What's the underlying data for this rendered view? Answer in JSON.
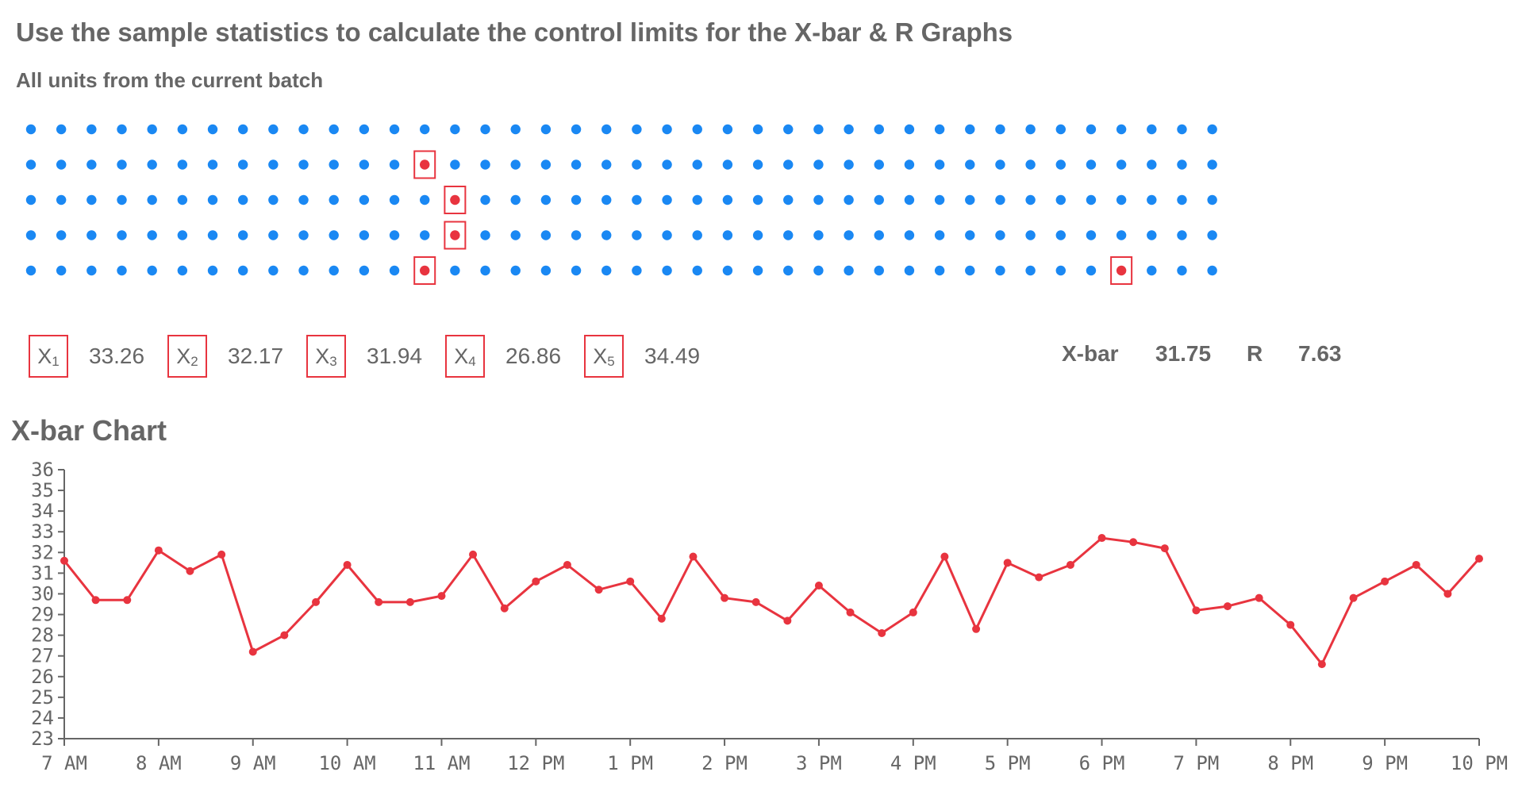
{
  "title": "Use the sample statistics to calculate the control limits for the X-bar & R Graphs",
  "subtitle": "All units from the current batch",
  "batch_grid": {
    "rows": 5,
    "columns": 40,
    "unit_color": "#1a88f3",
    "sample_color": "#e8343f",
    "selected_units": [
      {
        "row": 2,
        "col": 14
      },
      {
        "row": 3,
        "col": 15
      },
      {
        "row": 4,
        "col": 15
      },
      {
        "row": 5,
        "col": 14
      },
      {
        "row": 5,
        "col": 37
      }
    ]
  },
  "samples": [
    {
      "label": "X",
      "sub": "1",
      "value": "33.26"
    },
    {
      "label": "X",
      "sub": "2",
      "value": "32.17"
    },
    {
      "label": "X",
      "sub": "3",
      "value": "31.94"
    },
    {
      "label": "X",
      "sub": "4",
      "value": "26.86"
    },
    {
      "label": "X",
      "sub": "5",
      "value": "34.49"
    }
  ],
  "stats": {
    "xbar_label": "X-bar",
    "xbar_value": "31.75",
    "r_label": "R",
    "r_value": "7.63"
  },
  "chart_title": "X-bar Chart",
  "chart_data": {
    "type": "line",
    "title": "X-bar Chart",
    "xlabel": "",
    "ylabel": "",
    "ylim": [
      23,
      36
    ],
    "yticks": [
      23,
      24,
      25,
      26,
      27,
      28,
      29,
      30,
      31,
      32,
      33,
      34,
      35,
      36
    ],
    "x_range_hours": [
      7,
      22
    ],
    "xtick_labels": [
      "7 AM",
      "8 AM",
      "9 AM",
      "10 AM",
      "11 AM",
      "12 PM",
      "1 PM",
      "2 PM",
      "3 PM",
      "4 PM",
      "5 PM",
      "6 PM",
      "7 PM",
      "8 PM",
      "9 PM",
      "10 PM"
    ],
    "grid": false,
    "line_color": "#e8343f",
    "series": [
      {
        "x": [
          7.0,
          7.333,
          7.667,
          8.0,
          8.333,
          8.667,
          9.0,
          9.333,
          9.667,
          10.0,
          10.333,
          10.667,
          11.0,
          11.333,
          11.667,
          12.0,
          12.333,
          12.667,
          13.0,
          13.333,
          13.667,
          14.0,
          14.333,
          14.667,
          15.0,
          15.333,
          15.667,
          16.0,
          16.333,
          16.667,
          17.0,
          17.333,
          17.667,
          18.0,
          18.333,
          18.667,
          19.0,
          19.333,
          19.667,
          20.0,
          20.333,
          20.667,
          21.0,
          21.333,
          21.667,
          22.0
        ],
        "values": [
          31.6,
          29.7,
          29.7,
          32.1,
          31.1,
          31.9,
          27.2,
          28.0,
          29.6,
          31.4,
          29.6,
          29.6,
          29.9,
          31.9,
          29.3,
          30.6,
          31.4,
          30.2,
          30.6,
          28.8,
          31.8,
          29.8,
          29.6,
          28.7,
          30.4,
          29.1,
          28.1,
          29.1,
          31.8,
          28.3,
          31.5,
          30.8,
          31.4,
          32.7,
          32.5,
          32.2,
          29.2,
          29.4,
          29.8,
          28.5,
          26.6,
          29.8,
          30.6,
          31.4,
          30.0,
          31.7
        ]
      }
    ]
  }
}
